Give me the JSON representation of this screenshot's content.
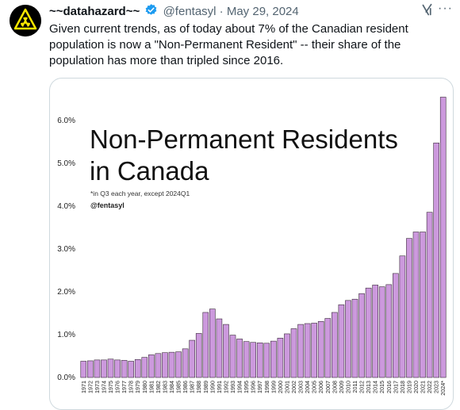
{
  "tweet": {
    "author_name": "~~datahazard~~",
    "handle": "@fentasyl",
    "separator": "·",
    "date": "May 29, 2024",
    "text": "Given current trends, as of today about 7% of the Canadian resident population is now a \"Non-Permanent Resident\" -- their share of the population has more than tripled since 2016.",
    "more_label": "···"
  },
  "icons": {
    "avatar": "radioactive-hazard-icon",
    "verified": "verified-badge-icon",
    "grok": "grok-icon",
    "more": "more-icon"
  },
  "colors": {
    "bar_fill": "#cc99dd",
    "bar_stroke": "#3a2a3a",
    "verified": "#1d9bf0",
    "avatar_bg": "#000000",
    "avatar_fg": "#f7e600"
  },
  "chart_data": {
    "type": "bar",
    "title": "Non-Permanent Residents in Canada",
    "title_lines": [
      "Non-Permanent Residents",
      "in Canada"
    ],
    "subtitle": "*in Q3 each year, except 2024Q1",
    "credit": "@fentasyl",
    "ylim": [
      0,
      6.8
    ],
    "yticks": [
      0,
      1,
      2,
      3,
      4,
      5,
      6
    ],
    "ytick_labels": [
      "0.0%",
      "1.0%",
      "2.0%",
      "3.0%",
      "4.0%",
      "5.0%",
      "6.0%"
    ],
    "grid": false,
    "categories": [
      "1971",
      "1972",
      "1973",
      "1974",
      "1975",
      "1976",
      "1977",
      "1978",
      "1979",
      "1980",
      "1981",
      "1982",
      "1983",
      "1984",
      "1985",
      "1986",
      "1987",
      "1988",
      "1989",
      "1990",
      "1991",
      "1992",
      "1993",
      "1994",
      "1995",
      "1996",
      "1997",
      "1998",
      "1999",
      "2000",
      "2001",
      "2002",
      "2003",
      "2004",
      "2005",
      "2006",
      "2007",
      "2008",
      "2009",
      "2010",
      "2011",
      "2012",
      "2013",
      "2014",
      "2015",
      "2016",
      "2017",
      "2018",
      "2019",
      "2020",
      "2021",
      "2022",
      "2023",
      "2024*"
    ],
    "values": [
      0.38,
      0.39,
      0.41,
      0.41,
      0.43,
      0.41,
      0.4,
      0.38,
      0.42,
      0.47,
      0.53,
      0.56,
      0.58,
      0.59,
      0.6,
      0.67,
      0.87,
      1.03,
      1.52,
      1.6,
      1.37,
      1.24,
      0.99,
      0.9,
      0.84,
      0.82,
      0.81,
      0.8,
      0.85,
      0.92,
      1.02,
      1.14,
      1.24,
      1.26,
      1.27,
      1.31,
      1.38,
      1.52,
      1.7,
      1.8,
      1.83,
      1.96,
      2.09,
      2.16,
      2.12,
      2.17,
      2.43,
      2.84,
      3.25,
      3.4,
      3.4,
      3.86,
      5.48,
      6.55
    ]
  }
}
